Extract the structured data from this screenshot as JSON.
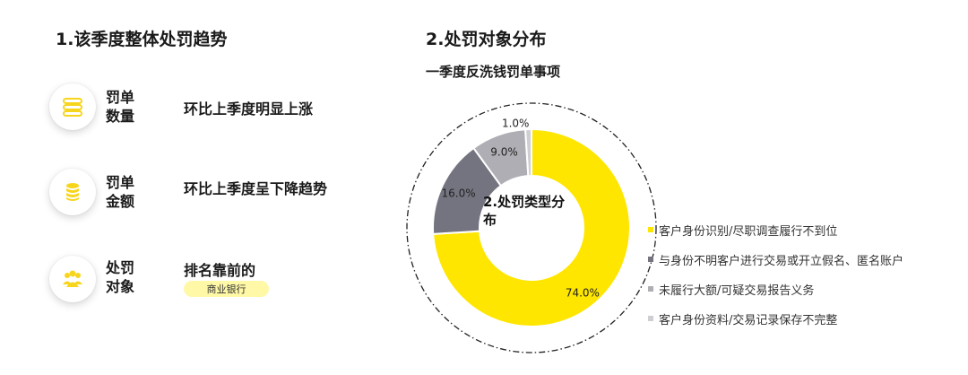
{
  "section1": {
    "title": "1.该季度整体处罚趋势",
    "metrics": [
      {
        "label_line1": "罚单",
        "label_line2": "数量",
        "desc": "环比上季度明显上涨",
        "icon": "list-icon"
      },
      {
        "label_line1": "罚单",
        "label_line2": "金额",
        "desc": "环比上季度呈下降趋势",
        "icon": "coin-stack-icon"
      },
      {
        "label_line1": "处罚",
        "label_line2": "对象",
        "desc": "排名靠前的",
        "icon": "people-group-icon",
        "tag": "商业银行"
      }
    ]
  },
  "section2": {
    "title": "2.处罚对象分布",
    "subtitle": "一季度反洗钱罚单事项"
  },
  "colors": {
    "accent": "#ffe600",
    "icon_yellow": "#f7d51d",
    "tag_bg": "#fff8a6"
  },
  "chart_data": {
    "type": "pie",
    "donut": true,
    "center_label": "2.处罚类型分布",
    "categories": [
      "客户身份识别/尽职调查履行不到位",
      "与身份不明客户进行交易或开立假名、匿名账户",
      "未履行大额/可疑交易报告义务",
      "客户身份资料/交易记录保存不完整"
    ],
    "values": [
      74.0,
      16.0,
      9.0,
      1.0
    ],
    "value_labels": [
      "74.0%",
      "16.0%",
      "9.0%",
      "1.0%"
    ],
    "colors": [
      "#ffe600",
      "#747480",
      "#aeaeb4",
      "#cfcfd3"
    ],
    "legend_position": "right"
  }
}
